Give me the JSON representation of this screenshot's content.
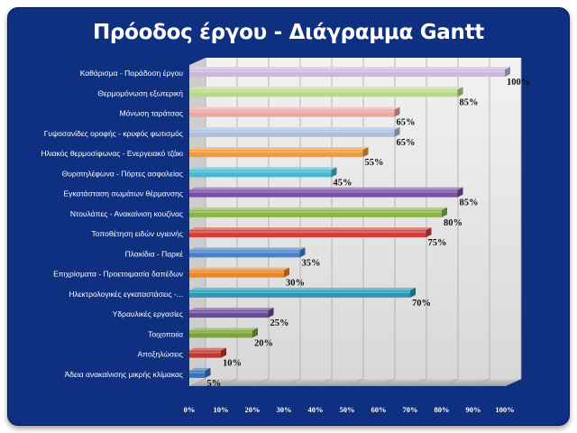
{
  "chart_data": {
    "type": "bar",
    "orientation": "horizontal",
    "title": "Πρόοδος έργου - Διάγραμμα Gantt",
    "categories": [
      "Καθάρισμα - Παράδοση έργου",
      "Θερμομόνωση εξωτερική",
      "Μόνωση ταράτσας",
      "Γυψοσανίδες οροφής - κρυφός φωτισμός",
      "Ηλιακός θερμοσίφωνας - Ενεργειακό τζάκι",
      "Θυροτηλέφωνα - Πόρτες ασφαλείας",
      "Εγκατάσταση σωμάτων θέρμανσης",
      "Ντουλάπες - Ανακαίνιση κουζίνας",
      "Τοποθέτηση ειδών υγιεινής",
      "Πλακίδια - Παρκέ",
      "Επιχρίσματα - Προετοιμασία δαπέδων",
      "Ηλεκτρολογικές εγκαταστάσεις -...",
      "Υδραυλικές εργασίες",
      "Τοιχοποιία",
      "Αποξηλώσεις",
      "Άδεια ανακαίνισης μικρής κλίμακας"
    ],
    "values": [
      100,
      85,
      65,
      65,
      55,
      45,
      85,
      80,
      75,
      35,
      30,
      70,
      25,
      20,
      10,
      5
    ],
    "value_labels": [
      "100%",
      "85%",
      "65%",
      "65%",
      "55%",
      "45%",
      "85%",
      "80%",
      "75%",
      "35%",
      "30%",
      "70%",
      "25%",
      "20%",
      "10%",
      "5%"
    ],
    "bar_colors": [
      "#c9b8dc",
      "#b8d98a",
      "#eca6a4",
      "#aebfe0",
      "#f39a3a",
      "#45b8d2",
      "#7a50a4",
      "#8ab448",
      "#d0403a",
      "#4a80c8",
      "#e8862a",
      "#2a9ab4",
      "#6a4a98",
      "#7aa43a",
      "#c23630",
      "#3a72b8"
    ],
    "xlim": [
      0,
      100
    ],
    "xticks": [
      "0%",
      "10%",
      "20%",
      "30%",
      "40%",
      "50%",
      "60%",
      "70%",
      "80%",
      "90%",
      "100%"
    ],
    "grid": true,
    "legend": "none",
    "colors": {
      "background": "#0f2f80",
      "plot_wall": "#e8e8e8",
      "grid": "#a8a8a8"
    }
  }
}
